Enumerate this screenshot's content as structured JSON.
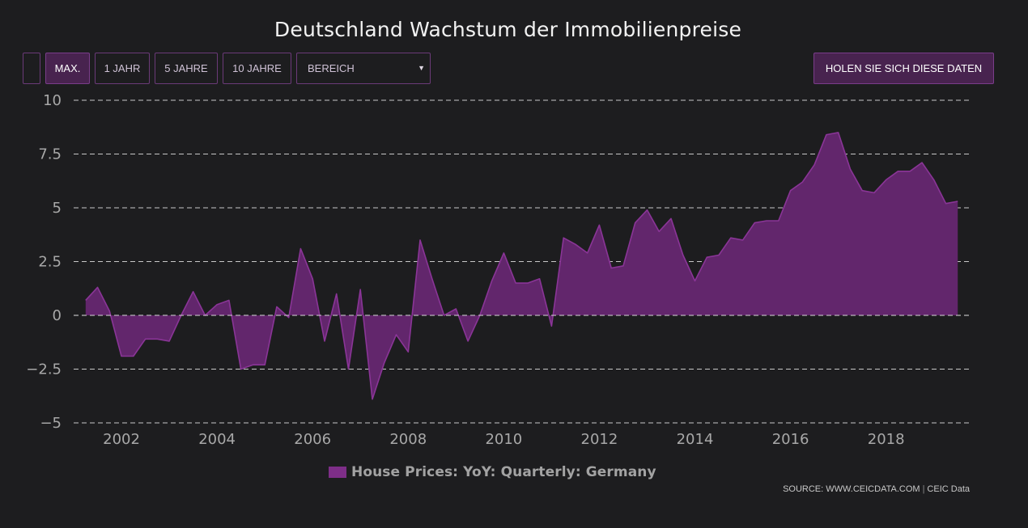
{
  "header": {
    "title": "Deutschland Wachstum der Immobilienpreise"
  },
  "toolbar": {
    "range_buttons": [
      "MAX.",
      "1 JAHR",
      "5 JAHRE",
      "10 JAHRE"
    ],
    "active_button": "MAX.",
    "range_select_label": "BEREICH",
    "get_data_label": "HOLEN SIE SICH DIESE DATEN"
  },
  "footer": {
    "source_label": "SOURCE: WWW.CEICDATA.COM",
    "source_brand": "CEIC Data"
  },
  "colors": {
    "series_fill": "#62266c",
    "series_line": "#8a3597",
    "grid": "#e6e6e6",
    "axis_text": "#a8a8a8",
    "background": "#1d1d1f"
  },
  "chart_data": {
    "type": "area",
    "title": "Deutschland Wachstum der Immobilienpreise",
    "xlabel": "",
    "ylabel": "",
    "ylim": [
      -5,
      10
    ],
    "xlim": [
      2001.0,
      2019.75
    ],
    "yticks": [
      10,
      7.5,
      5,
      2.5,
      0,
      -2.5,
      -5
    ],
    "ytick_labels": [
      "10",
      "7.5",
      "5",
      "2.5",
      "0",
      "−2.5",
      "−5"
    ],
    "xticks": [
      2002,
      2004,
      2006,
      2008,
      2010,
      2012,
      2014,
      2016,
      2018
    ],
    "xtick_labels": [
      "2002",
      "2004",
      "2006",
      "2008",
      "2010",
      "2012",
      "2014",
      "2016",
      "2018"
    ],
    "grid": true,
    "legend_position": "bottom-center",
    "series": [
      {
        "name": "House Prices: YoY: Quarterly: Germany",
        "x": [
          2001.25,
          2001.5,
          2001.75,
          2002.0,
          2002.25,
          2002.5,
          2002.75,
          2003.0,
          2003.25,
          2003.5,
          2003.75,
          2004.0,
          2004.25,
          2004.5,
          2004.75,
          2005.0,
          2005.25,
          2005.5,
          2005.75,
          2006.0,
          2006.25,
          2006.5,
          2006.75,
          2007.0,
          2007.25,
          2007.5,
          2007.75,
          2008.0,
          2008.25,
          2008.5,
          2008.75,
          2009.0,
          2009.25,
          2009.5,
          2009.75,
          2010.0,
          2010.25,
          2010.5,
          2010.75,
          2011.0,
          2011.25,
          2011.5,
          2011.75,
          2012.0,
          2012.25,
          2012.5,
          2012.75,
          2013.0,
          2013.25,
          2013.5,
          2013.75,
          2014.0,
          2014.25,
          2014.5,
          2014.75,
          2015.0,
          2015.25,
          2015.5,
          2015.75,
          2016.0,
          2016.25,
          2016.5,
          2016.75,
          2017.0,
          2017.25,
          2017.5,
          2017.75,
          2018.0,
          2018.25,
          2018.5,
          2018.75,
          2019.0,
          2019.25,
          2019.5
        ],
        "values": [
          0.7,
          1.3,
          0.2,
          -1.9,
          -1.9,
          -1.1,
          -1.1,
          -1.2,
          0.0,
          1.1,
          0.0,
          0.5,
          0.7,
          -2.5,
          -2.3,
          -2.3,
          0.4,
          -0.1,
          3.1,
          1.7,
          -1.2,
          1.0,
          -2.5,
          1.2,
          -3.9,
          -2.2,
          -0.9,
          -1.7,
          3.5,
          1.7,
          0.0,
          0.3,
          -1.2,
          0.0,
          1.6,
          2.9,
          1.5,
          1.5,
          1.7,
          -0.5,
          3.6,
          3.3,
          2.9,
          4.2,
          2.2,
          2.3,
          4.3,
          4.9,
          3.9,
          4.5,
          2.8,
          1.6,
          2.7,
          2.8,
          3.6,
          3.5,
          4.3,
          4.4,
          4.4,
          5.8,
          6.2,
          7.0,
          8.4,
          8.5,
          6.8,
          5.8,
          5.7,
          6.3,
          6.7,
          6.7,
          7.1,
          6.3,
          5.2,
          5.3
        ]
      }
    ]
  }
}
